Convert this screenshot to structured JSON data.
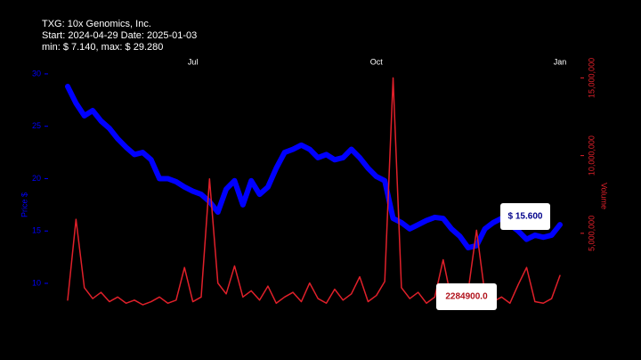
{
  "chart_data": {
    "type": "line",
    "title": [
      "TXG: 10x Genomics, Inc.",
      "Start: 2024-04-29  Date: 2025-01-03",
      "min: $ 7.140, max: $ 29.280"
    ],
    "ylabel": "Price $",
    "y2label": "Volume",
    "categories": [
      null,
      null,
      null,
      null,
      null,
      null,
      null,
      null,
      null,
      null,
      null,
      null,
      null,
      null,
      null,
      "Jul",
      null,
      null,
      null,
      null,
      null,
      null,
      null,
      null,
      null,
      null,
      null,
      null,
      null,
      null,
      null,
      null,
      null,
      null,
      null,
      null,
      null,
      "Oct",
      null,
      null,
      null,
      null,
      null,
      null,
      null,
      null,
      null,
      null,
      null,
      null,
      null,
      null,
      null,
      null,
      null,
      null,
      null,
      null,
      null,
      "Jan"
    ],
    "series": [
      {
        "name": "Price $",
        "color": "#0000ff",
        "values": [
          28.8,
          27.2,
          26,
          26.5,
          25.5,
          24.8,
          23.8,
          23,
          22.3,
          22.5,
          21.8,
          20,
          20,
          19.7,
          19.2,
          18.8,
          18.5,
          17.8,
          16.8,
          19,
          19.8,
          17.5,
          19.8,
          18.5,
          19.2,
          21,
          22.5,
          22.8,
          23.2,
          22.8,
          22,
          22.3,
          21.8,
          22,
          22.8,
          22,
          21,
          20.2,
          19.8,
          16.2,
          15.8,
          15.2,
          15.6,
          16,
          16.3,
          16.2,
          15.2,
          14.5,
          13.4,
          13.6,
          15.2,
          15.8,
          16.2,
          15.6,
          15,
          14.2,
          14.6,
          14.4,
          14.6,
          15.6
        ]
      },
      {
        "name": "Volume",
        "color": "#e0202a",
        "axis": "y2",
        "values": [
          700000,
          5900000,
          1500000,
          800000,
          1200000,
          600000,
          900000,
          500000,
          700000,
          400000,
          600000,
          900000,
          500000,
          700000,
          2800000,
          600000,
          900000,
          8500000,
          1800000,
          1100000,
          2900000,
          900000,
          1300000,
          700000,
          1600000,
          500000,
          900000,
          1200000,
          600000,
          1800000,
          800000,
          500000,
          1400000,
          700000,
          1100000,
          2200000,
          600000,
          1000000,
          1900000,
          15000000,
          1500000,
          800000,
          1200000,
          500000,
          900000,
          3300000,
          700000,
          500000,
          1300000,
          5200000,
          1100000,
          600000,
          900000,
          500000,
          1700000,
          2800000,
          600000,
          500000,
          800000,
          2284900
        ]
      }
    ],
    "ylim": [
      7.36,
      31.1
    ],
    "yticks": [
      10,
      15,
      20,
      25,
      30
    ],
    "y2lim": [
      0,
      16000000
    ],
    "y2ticks": [
      {
        "value": 5000000,
        "label": "5,000,000"
      },
      {
        "value": 10000000,
        "label": "10,000,000"
      },
      {
        "value": 15000000,
        "label": "15,000,000"
      }
    ],
    "annotations": [
      "$ 15.600",
      "2284900.0"
    ]
  }
}
